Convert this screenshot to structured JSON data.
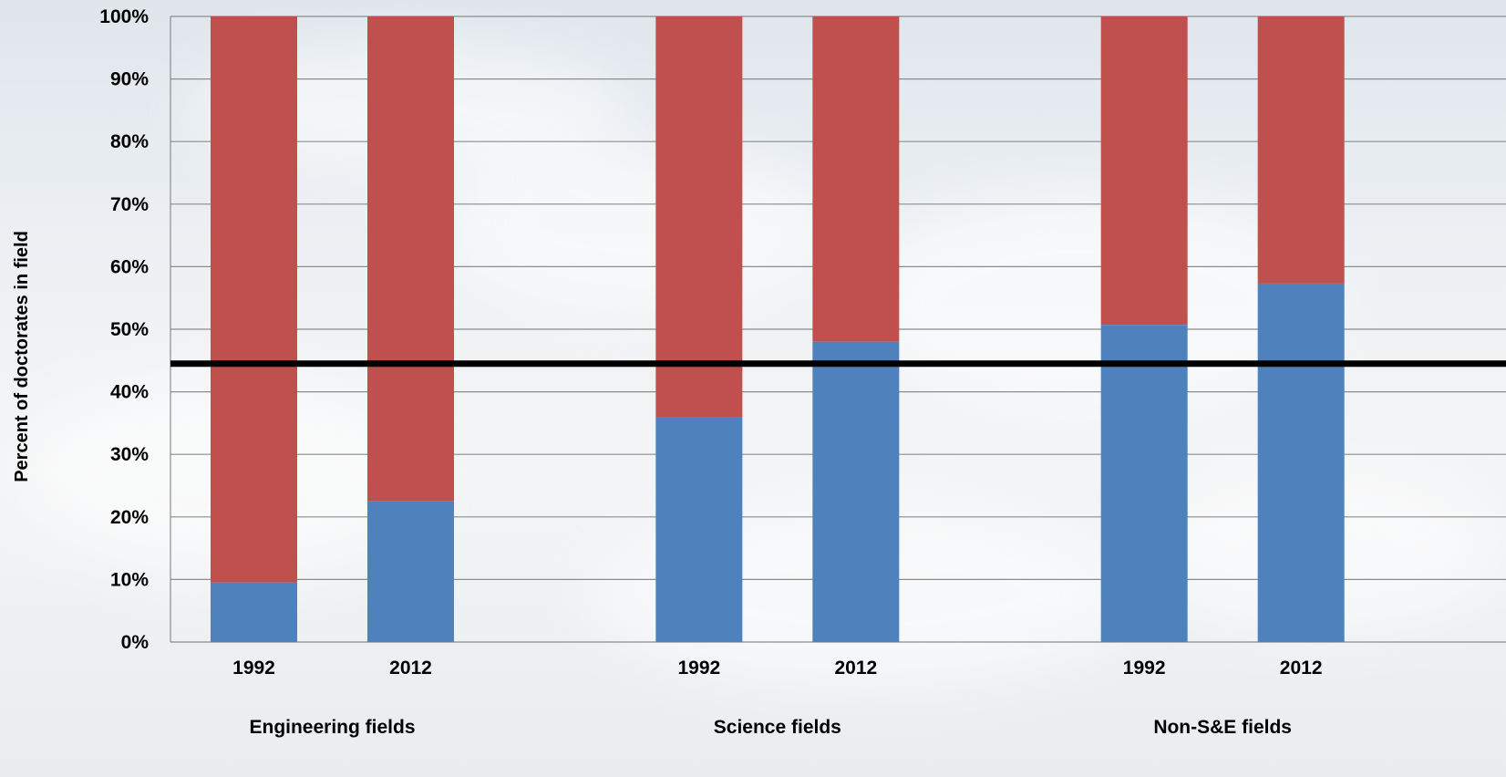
{
  "chart_data": {
    "type": "bar",
    "stacked": true,
    "normalized_percent": true,
    "ylabel": "Percent of doctorates in field",
    "xlabel": "",
    "ylim": [
      0,
      100
    ],
    "yticks": [
      "0%",
      "10%",
      "20%",
      "30%",
      "40%",
      "50%",
      "60%",
      "70%",
      "80%",
      "90%",
      "100%"
    ],
    "grid": true,
    "legend": "none",
    "groups": [
      {
        "label": "Engineering fields",
        "bars": [
          {
            "year": "1992",
            "bottom": 9.5
          },
          {
            "year": "2012",
            "bottom": 22.5
          }
        ]
      },
      {
        "label": "Science fields",
        "bars": [
          {
            "year": "1992",
            "bottom": 36
          },
          {
            "year": "2012",
            "bottom": 48
          }
        ]
      },
      {
        "label": "Non-S&E fields",
        "bars": [
          {
            "year": "1992",
            "bottom": 50.7
          },
          {
            "year": "2012",
            "bottom": 57.3
          }
        ]
      }
    ],
    "series_colors": {
      "bottom": "#4f81bd",
      "top": "#c0504d"
    },
    "reference_line": {
      "value": 44.5,
      "color": "#000000"
    }
  }
}
